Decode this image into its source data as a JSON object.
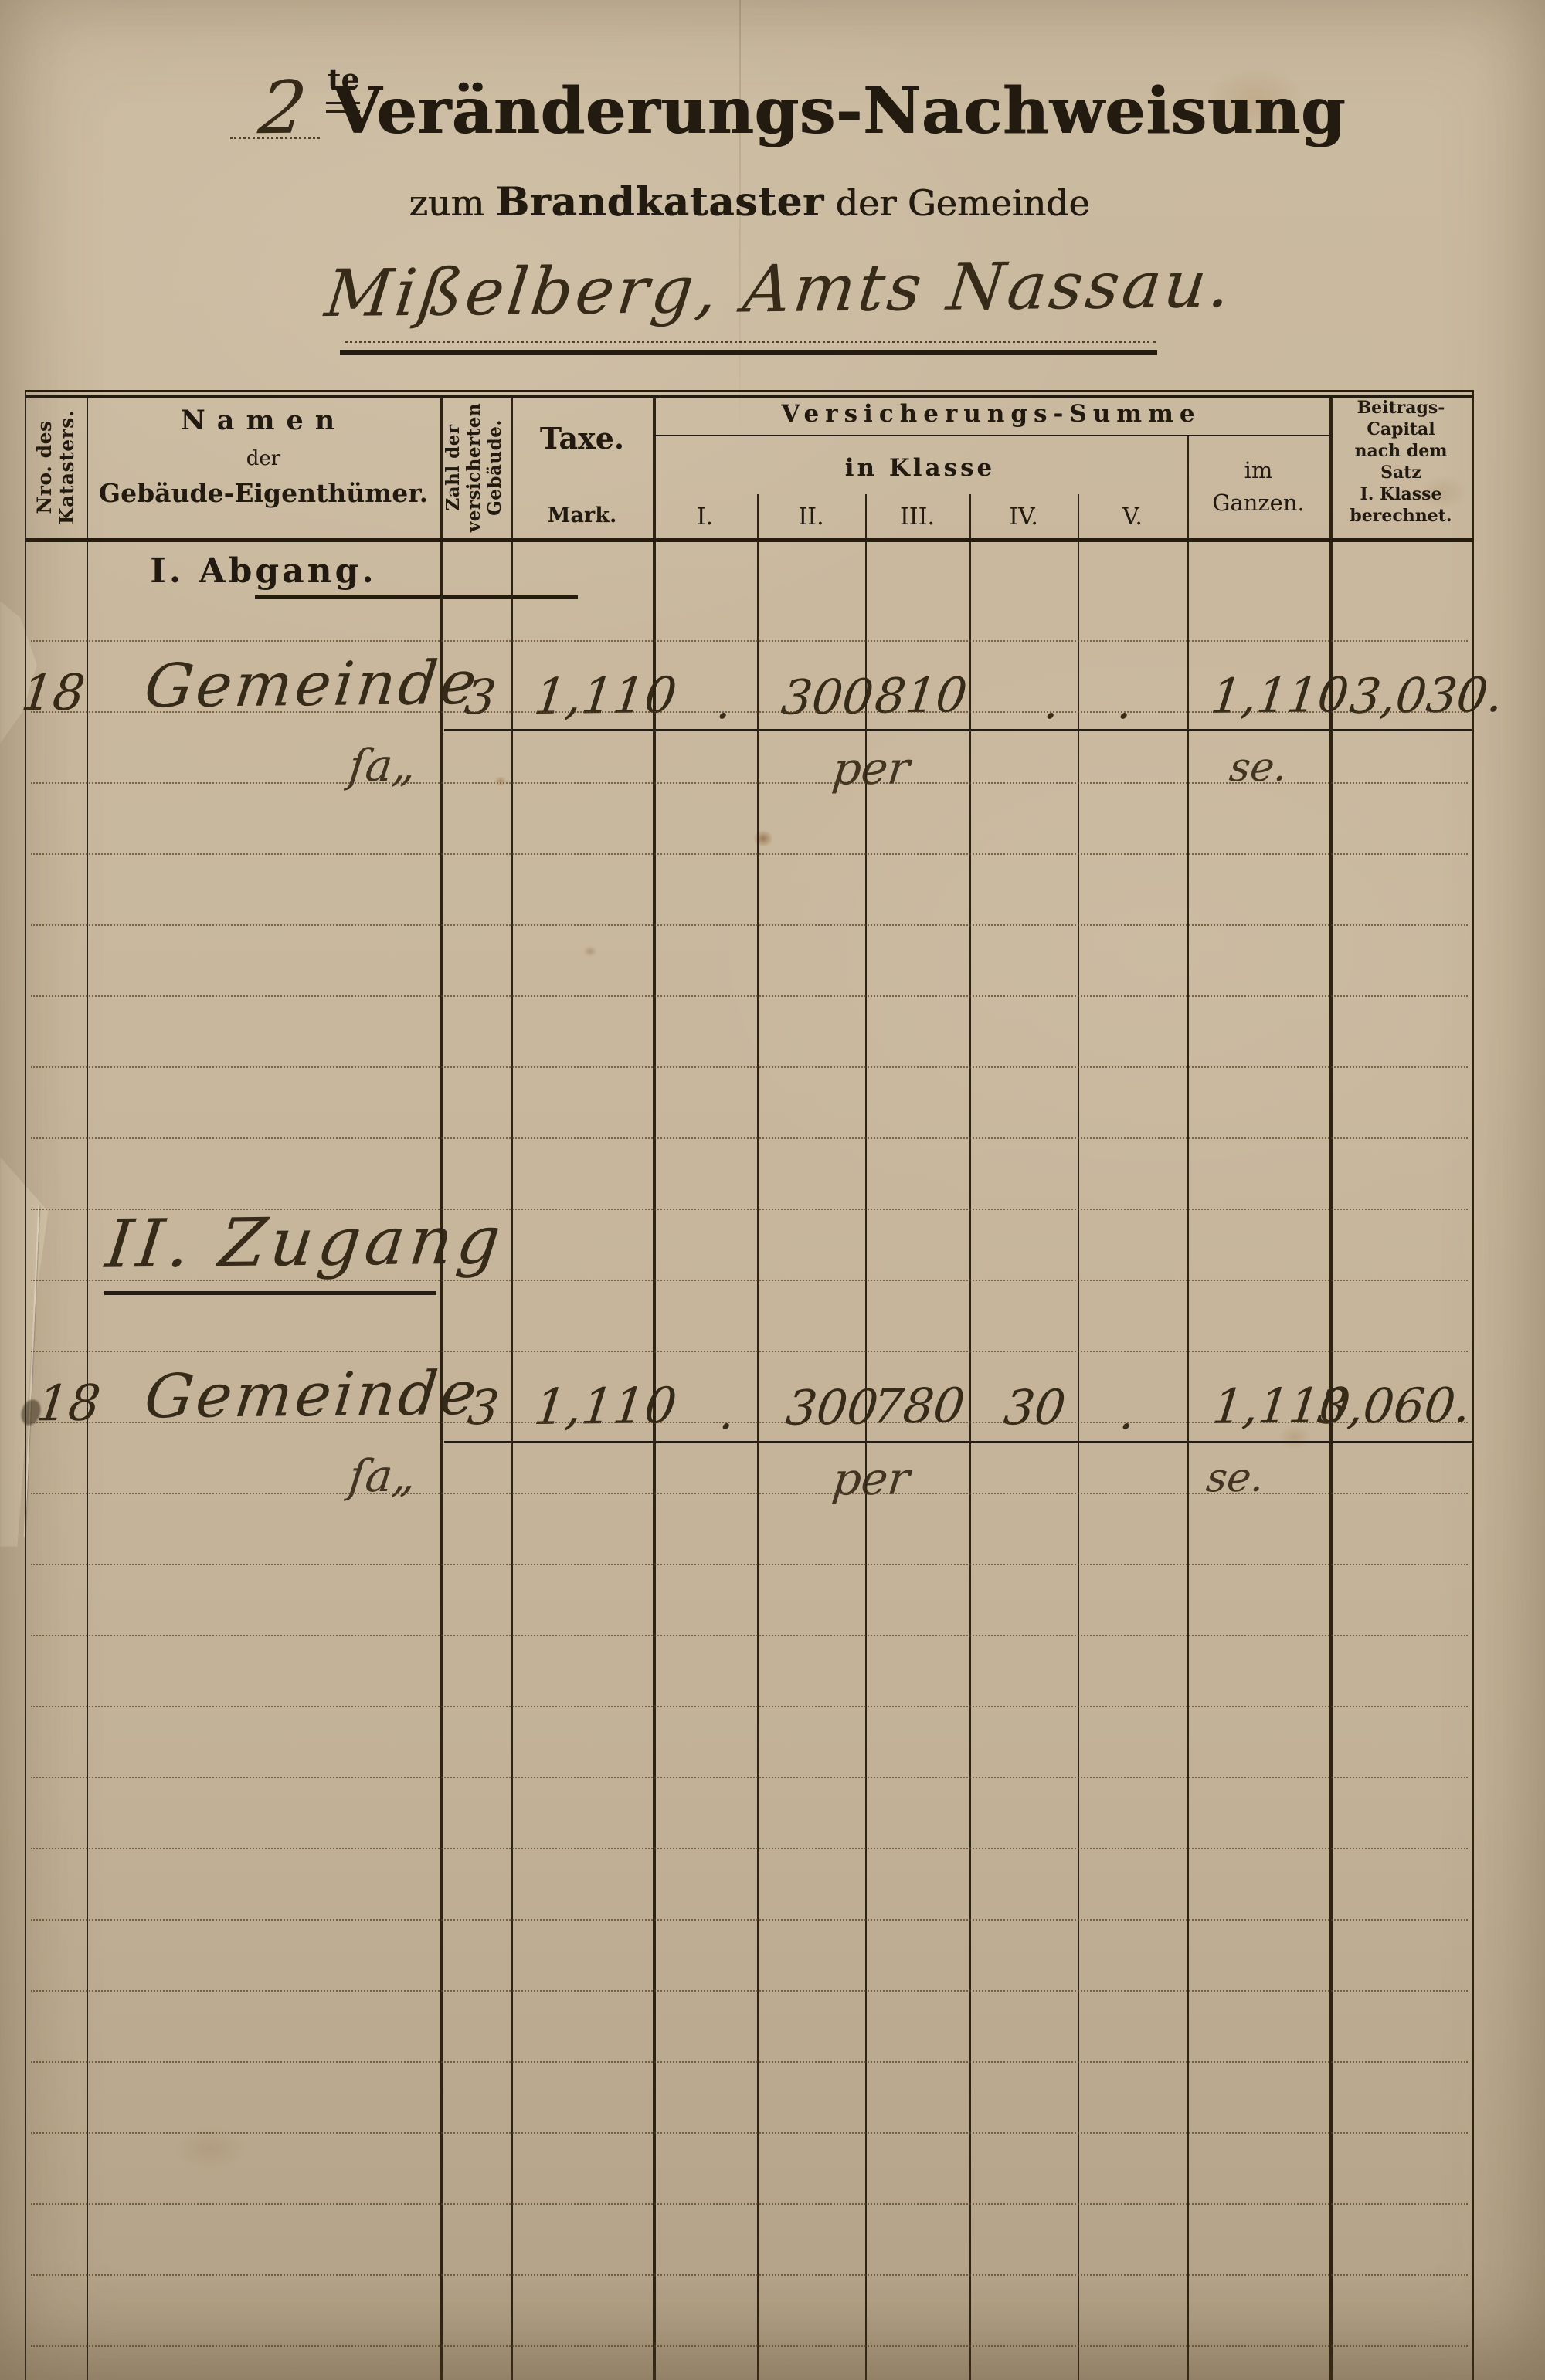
{
  "title": {
    "ordinal": "2",
    "ordinal_suffix": "te",
    "main": "Veränderungs-Nachweisung",
    "sub_prefix": "zum",
    "sub_emphasis": "Brandkataster",
    "sub_suffix": "der Gemeinde",
    "gemeinde_line": "Mißelberg, Amts Nassau."
  },
  "table": {
    "header": {
      "nro": "Nro. des\nKatasters.",
      "namen_line1": "Namen",
      "namen_line2": "der",
      "namen_line3": "Gebäude-Eigenthümer.",
      "zahl": "Zahl der\nversicherten\nGebäude.",
      "taxe": "Taxe.",
      "taxe_unit": "Mark.",
      "versicherungs_summe": "Versicherungs-Summe",
      "in_klasse": "in Klasse",
      "klasse": [
        "I.",
        "II.",
        "III.",
        "IV.",
        "V."
      ],
      "im_ganzen": "im\nGanzen.",
      "beitrag": "Beitrags-\nCapital\nnach dem\nSatz\nI. Klasse\nberechnet."
    },
    "sections": [
      {
        "label": "I. Abgang."
      },
      {
        "label": "II. Zugang"
      }
    ],
    "rows": [
      {
        "section": "Abgang",
        "nro": "18",
        "name": "Gemeinde",
        "zahl": "3",
        "taxe": "1,110",
        "klasse_1": ".",
        "klasse_2": "300",
        "klasse_3": "810",
        "klasse_4": ".",
        "klasse_5": ".",
        "im_ganzen": "1,110",
        "beitrag": "3,030.",
        "ditto": "ſa„",
        "note_per": "per",
        "note_se": "se."
      },
      {
        "section": "Zugang",
        "nro": "18",
        "name": "Gemeinde",
        "zahl": "3",
        "taxe": "1,110",
        "klasse_1": ".",
        "klasse_2": "300",
        "klasse_3": "780",
        "klasse_4": "30",
        "klasse_5": ".",
        "im_ganzen": "1,110",
        "beitrag": "3,060.",
        "ditto": "ſa„",
        "note_per": "per",
        "note_se": "se."
      }
    ]
  },
  "colors": {
    "paper": "#c8b79d",
    "ink_printed": "#231b10",
    "ink_handwritten": "#362a18",
    "rule": "#2d2314"
  }
}
